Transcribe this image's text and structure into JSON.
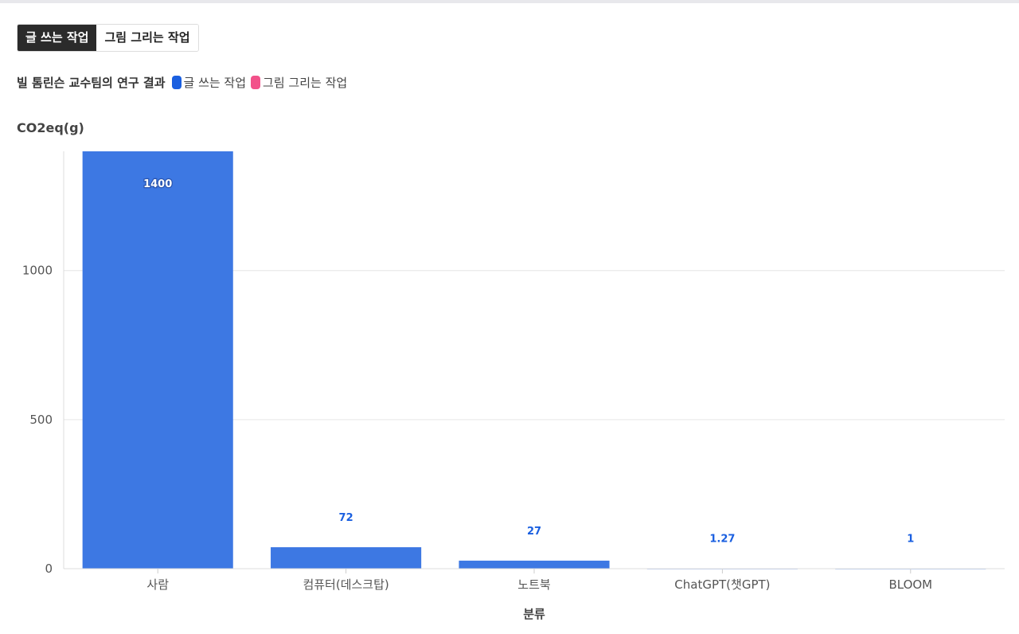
{
  "tabs": [
    {
      "label": "글 쓰는 작업",
      "active": true
    },
    {
      "label": "그림 그리는 작업",
      "active": false
    }
  ],
  "chart_data": {
    "type": "bar",
    "title": "빌 톰린슨 교수팀의 연구 결과",
    "legend": [
      {
        "name": "글 쓰는 작업",
        "color": "#1a5fe0"
      },
      {
        "name": "그림 그리는 작업",
        "color": "#f2518a"
      }
    ],
    "ylabel": "CO2eq(g)",
    "xlabel": "분류",
    "categories": [
      "사람",
      "컴퓨터(데스크탑)",
      "노트북",
      "ChatGPT(챗GPT)",
      "BLOOM"
    ],
    "series": [
      {
        "name": "글 쓰는 작업",
        "values": [
          1400,
          72,
          27,
          1.27,
          1
        ]
      }
    ],
    "value_labels": [
      "1400",
      "72",
      "27",
      "1.27",
      "1"
    ],
    "yticks": [
      0,
      500,
      1000
    ],
    "ylim": [
      0,
      1400
    ],
    "grid": true,
    "bar_color": "#3d78e3",
    "label_color": "#1a5fe0"
  }
}
